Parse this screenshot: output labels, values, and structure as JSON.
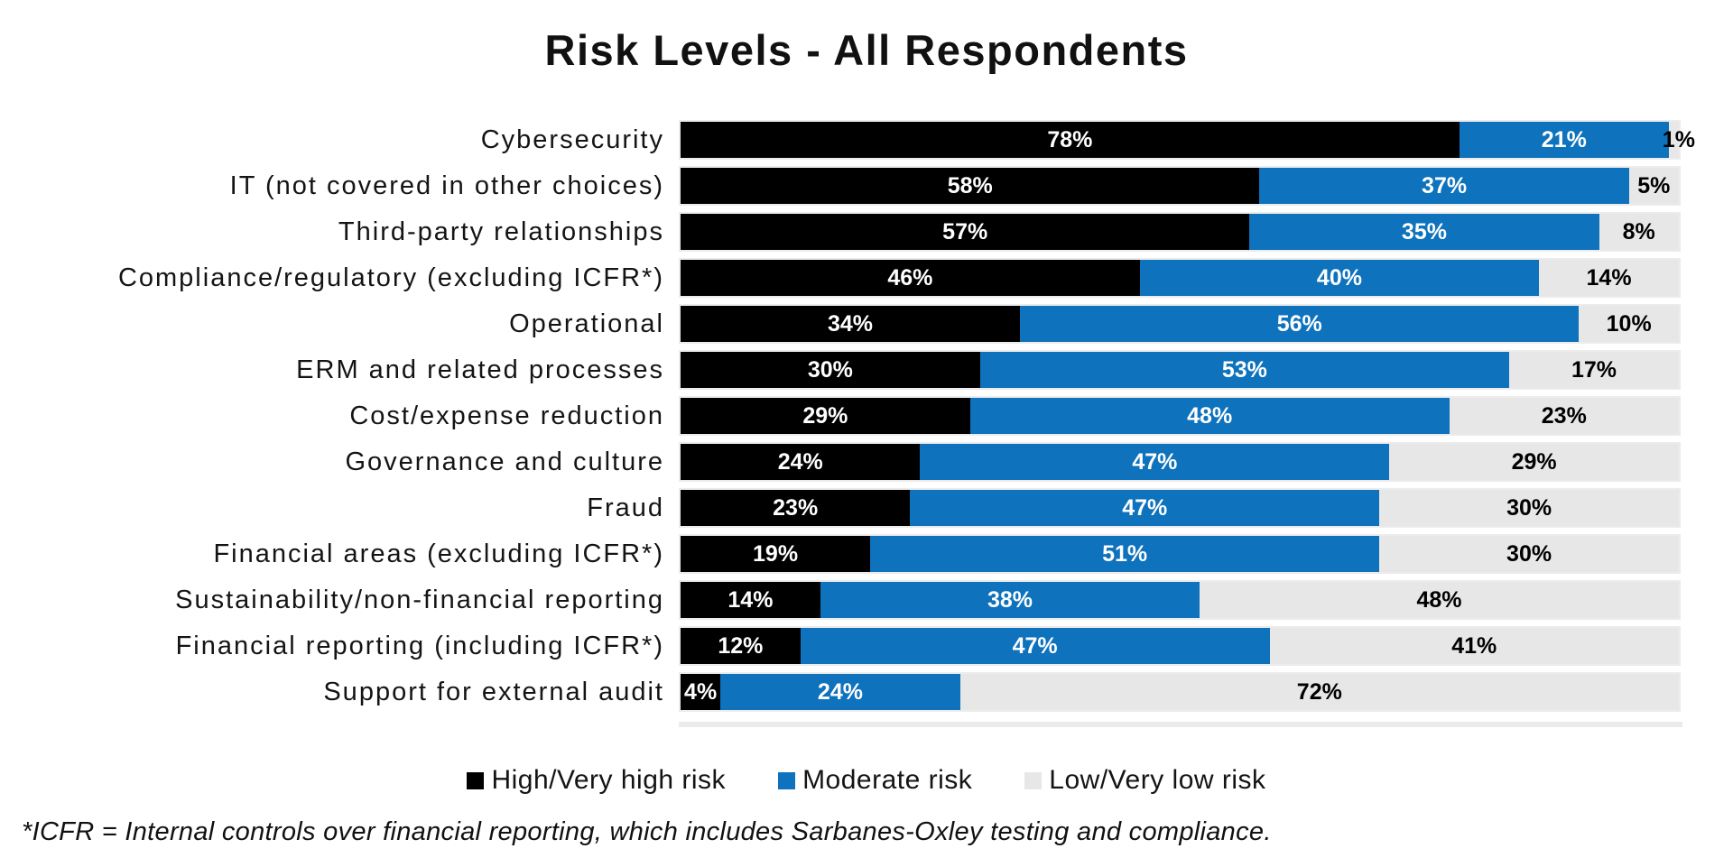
{
  "title": "Risk Levels - All Respondents",
  "footnote": "*ICFR = Internal controls over financial reporting, which includes Sarbanes-Oxley testing and compliance.",
  "colors": {
    "high_risk": "#000000",
    "moderate_risk": "#0E72BC",
    "low_risk": "#E8E7E7",
    "label_on_dark": "#FFFFFF",
    "label_on_light": "#000000",
    "track_border": "#ECECEC"
  },
  "legend": [
    {
      "label": "High/Very high risk",
      "color": "#000000"
    },
    {
      "label": "Moderate risk",
      "color": "#0E72BC"
    },
    {
      "label": "Low/Very low risk",
      "color": "#E8E7E7"
    }
  ],
  "chart_data": {
    "type": "bar",
    "orientation": "horizontal",
    "stacked": true,
    "unit": "%",
    "xlim": [
      0,
      100
    ],
    "grid": false,
    "value_labels": "inside",
    "legend_position": "bottom",
    "title": "Risk Levels - All Respondents",
    "categories": [
      "Cybersecurity",
      "IT (not covered in other choices)",
      "Third-party relationships",
      "Compliance/regulatory (excluding ICFR*)",
      "Operational",
      "ERM and related processes",
      "Cost/expense reduction",
      "Governance and culture",
      "Fraud",
      "Financial areas (excluding ICFR*)",
      "Sustainability/non-financial reporting",
      "Financial reporting (including ICFR*)",
      "Support for external audit"
    ],
    "series": [
      {
        "name": "High/Very high risk",
        "color": "#000000",
        "label_color": "#FFFFFF",
        "values": [
          78,
          58,
          57,
          46,
          34,
          30,
          29,
          24,
          23,
          19,
          14,
          12,
          4
        ]
      },
      {
        "name": "Moderate risk",
        "color": "#0E72BC",
        "label_color": "#FFFFFF",
        "values": [
          21,
          37,
          35,
          40,
          56,
          53,
          48,
          47,
          47,
          51,
          38,
          47,
          24
        ]
      },
      {
        "name": "Low/Very low risk",
        "color": "#E8E7E7",
        "label_color": "#000000",
        "values": [
          1,
          5,
          8,
          14,
          10,
          17,
          23,
          29,
          30,
          30,
          48,
          41,
          72
        ]
      }
    ]
  }
}
